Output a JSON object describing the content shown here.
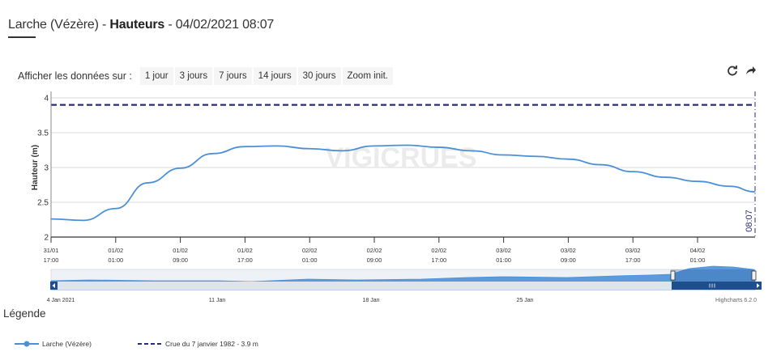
{
  "header": {
    "title_station": "Larche (Vézère)",
    "title_sep1": " - ",
    "title_measure": "Hauteurs",
    "title_sep2": " - ",
    "title_datetime": "04/02/2021 08:07"
  },
  "range_selector": {
    "label": "Afficher les données sur :",
    "buttons": [
      "1 jour",
      "3 jours",
      "7 jours",
      "14 jours",
      "30 jours",
      "Zoom init."
    ]
  },
  "toolbar": {
    "refresh_icon": "refresh-icon",
    "share_icon": "share-arrow-icon"
  },
  "watermark": "VIGICRUES",
  "colors": {
    "series": "#4a90d9",
    "threshold": "#2b2b7a",
    "navigator_fill": "#4a90d9",
    "grid": "#d8d8d8"
  },
  "chart_data": {
    "type": "line",
    "ylabel": "Hauteur (m)",
    "ylim": [
      2,
      4
    ],
    "yticks": [
      "2",
      "2.5",
      "3",
      "3.5",
      "4"
    ],
    "x_range": [
      "31/01 17:00",
      "04/02 08:07"
    ],
    "xticks": [
      {
        "date": "31/01",
        "time": "17:00"
      },
      {
        "date": "01/02",
        "time": "01:00"
      },
      {
        "date": "01/02",
        "time": "09:00"
      },
      {
        "date": "01/02",
        "time": "17:00"
      },
      {
        "date": "02/02",
        "time": "01:00"
      },
      {
        "date": "02/02",
        "time": "09:00"
      },
      {
        "date": "02/02",
        "time": "17:00"
      },
      {
        "date": "03/02",
        "time": "01:00"
      },
      {
        "date": "03/02",
        "time": "09:00"
      },
      {
        "date": "03/02",
        "time": "17:00"
      },
      {
        "date": "04/02",
        "time": "01:00"
      }
    ],
    "current_time_label": "08:07",
    "series": [
      {
        "name": "Larche (Vézère)",
        "x": [
          "31/01 17:00",
          "31/01 21:00",
          "01/02 01:00",
          "01/02 05:00",
          "01/02 09:00",
          "01/02 13:00",
          "01/02 17:00",
          "01/02 21:00",
          "02/02 01:00",
          "02/02 05:00",
          "02/02 09:00",
          "02/02 13:00",
          "02/02 17:00",
          "02/02 21:00",
          "03/02 01:00",
          "03/02 05:00",
          "03/02 09:00",
          "03/02 13:00",
          "03/02 17:00",
          "03/02 21:00",
          "04/02 01:00",
          "04/02 05:00",
          "04/02 08:07"
        ],
        "values": [
          2.26,
          2.24,
          2.41,
          2.78,
          2.99,
          3.2,
          3.3,
          3.31,
          3.27,
          3.24,
          3.31,
          3.32,
          3.29,
          3.24,
          3.18,
          3.16,
          3.12,
          3.04,
          2.94,
          2.86,
          2.8,
          2.73,
          2.65
        ]
      },
      {
        "name": "Crue du 7 janvier 1982 - 3.9 m",
        "constant": 3.9
      }
    ],
    "navigator": {
      "xticks": [
        "4 Jan 2021",
        "11 Jan",
        "18 Jan",
        "25 Jan"
      ],
      "credit": "Highcharts 6.2.0"
    }
  },
  "legend": {
    "title": "Légende",
    "items": [
      {
        "label": "Larche (Vézère)",
        "style": "solid-with-marker"
      },
      {
        "label": "Crue du 7 janvier 1982 - 3.9 m",
        "style": "dashed"
      }
    ]
  }
}
